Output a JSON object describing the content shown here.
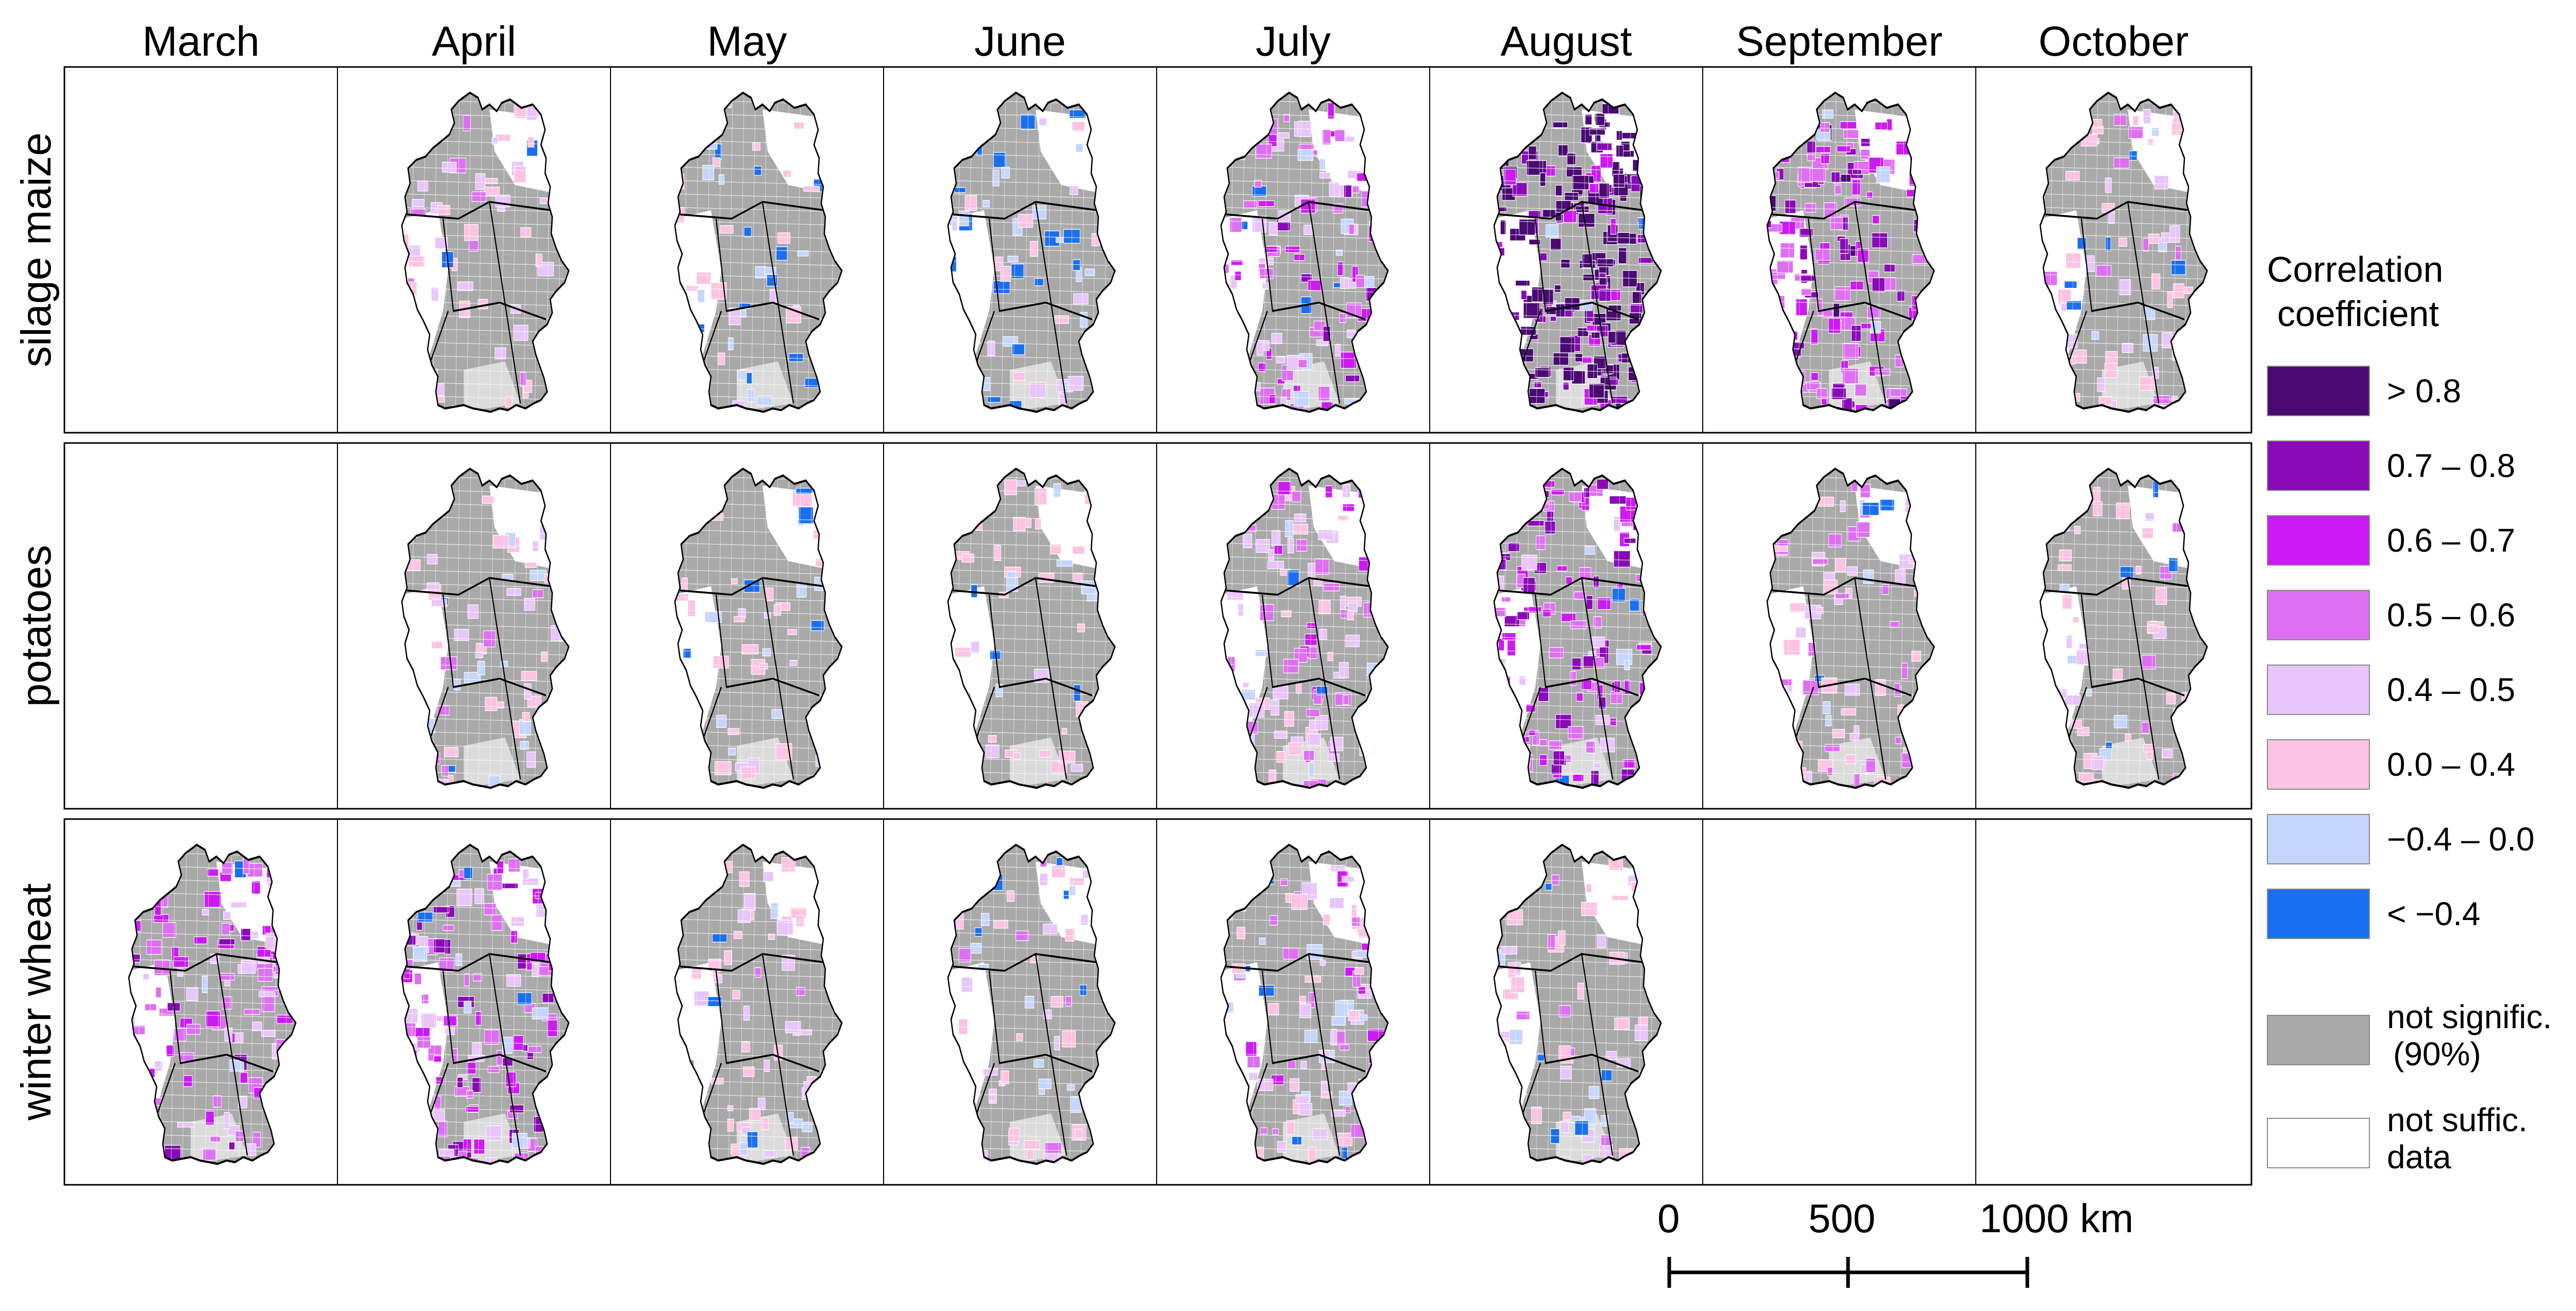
{
  "months": [
    "March",
    "April",
    "May",
    "June",
    "July",
    "August",
    "September",
    "October"
  ],
  "crops": [
    "silage maize",
    "potatoes",
    "winter wheat"
  ],
  "availability": [
    [
      false,
      true,
      true,
      true,
      true,
      true,
      true,
      true
    ],
    [
      false,
      true,
      true,
      true,
      true,
      true,
      true,
      true
    ],
    [
      true,
      true,
      true,
      true,
      true,
      true,
      false,
      false
    ]
  ],
  "colors": {
    "gt_0_8": "#4b0a73",
    "r0_7_0_8": "#8a0ab8",
    "r0_6_0_7": "#cc1af5",
    "r0_5_0_6": "#dd70f2",
    "r0_4_0_5": "#e8c5fb",
    "r0_0_0_4": "#fcc3e3",
    "rneg0_4_0_0": "#c5d5fb",
    "lt_neg0_4": "#1a6ff0",
    "not_significant": "#a9a9a9",
    "not_sufficient": "#ffffff"
  },
  "legend": {
    "title_line1": "Correlation",
    "title_line2": "coefficient",
    "classes": [
      {
        "label": "> 0.8",
        "color": "#4b0a73"
      },
      {
        "label": "0.7 – 0.8",
        "color": "#8a0ab8"
      },
      {
        "label": "0.6 – 0.7",
        "color": "#cc1af5"
      },
      {
        "label": "0.5 – 0.6",
        "color": "#dd70f2"
      },
      {
        "label": "0.4 – 0.5",
        "color": "#e8c5fb"
      },
      {
        "label": "0.0 – 0.4",
        "color": "#fcc3e3"
      },
      {
        "label": "−0.4 – 0.0",
        "color": "#c5d5fb"
      },
      {
        "label": "< −0.4",
        "color": "#1a6ff0"
      }
    ],
    "not_sig_line1": "not signific.",
    "not_sig_line2": "(90%)",
    "not_suff_line1": "not suffic.",
    "not_suff_line2": "data"
  },
  "scale_bar": {
    "label_0": "0",
    "label_500": "500",
    "label_1000": "1000 km"
  }
}
